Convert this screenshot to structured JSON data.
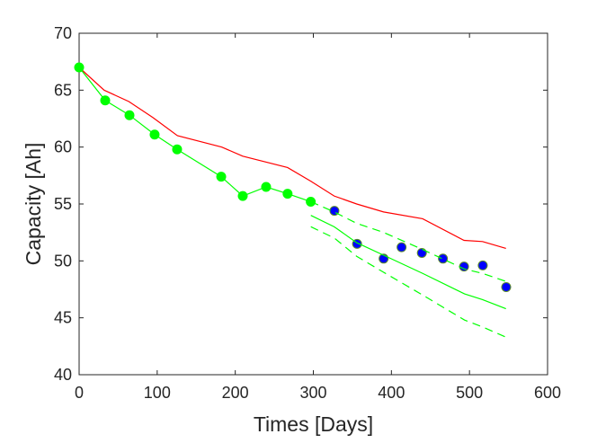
{
  "chart_data": {
    "type": "line",
    "title": "",
    "xlabel": "Times [Days]",
    "ylabel": "Capacity [Ah]",
    "xlim": [
      0,
      600
    ],
    "ylim": [
      40,
      70
    ],
    "xticks": [
      0,
      100,
      200,
      300,
      400,
      500,
      600
    ],
    "yticks": [
      40,
      45,
      50,
      55,
      60,
      65,
      70
    ],
    "grid": false,
    "legend": "none",
    "series": [
      {
        "style": "solid",
        "color": "#ff0000",
        "x": [
          0,
          32,
          63.7,
          94.4,
          125.9,
          182.7,
          209.6,
          267,
          296.7,
          326.7,
          355.5,
          390,
          440,
          493,
          516.7,
          546.7
        ],
        "y": [
          67.0,
          65.0,
          64.0,
          62.6,
          61.0,
          60.0,
          59.2,
          58.2,
          57.0,
          55.7,
          55.0,
          54.3,
          53.7,
          51.8,
          51.7,
          51.1
        ]
      },
      {
        "style": "solid-markers",
        "color": "#00ff00",
        "marker_color": "#00ff00",
        "x": [
          0,
          33.4,
          64.5,
          96.7,
          125.5,
          182,
          209.6,
          239.5,
          267,
          296.7
        ],
        "y": [
          67.0,
          64.1,
          62.8,
          61.1,
          59.8,
          57.4,
          55.7,
          56.5,
          55.9,
          55.2
        ]
      },
      {
        "style": "markers",
        "marker_color": "#0000ff",
        "edge_color": "#5a8a2a",
        "x": [
          327,
          356,
          390,
          413,
          439,
          466,
          493,
          517,
          547
        ],
        "y": [
          54.4,
          51.5,
          50.2,
          51.2,
          50.7,
          50.2,
          49.5,
          49.6,
          47.7
        ]
      },
      {
        "style": "solid",
        "color": "#00ff00",
        "x": [
          296.8,
          326.7,
          355.5,
          390,
          440,
          493.7,
          516.7,
          546.7
        ],
        "y": [
          54.0,
          53.0,
          51.6,
          50.5,
          48.9,
          47.1,
          46.6,
          45.8
        ]
      },
      {
        "style": "dashed",
        "color": "#00ff00",
        "x": [
          296.7,
          326.7,
          355.5,
          390,
          440,
          493,
          516.7,
          546.7
        ],
        "y": [
          55.2,
          54.3,
          53.3,
          52.5,
          51.0,
          49.3,
          48.9,
          48.2
        ]
      },
      {
        "style": "dashed",
        "color": "#00ff00",
        "x": [
          296.8,
          327,
          355.5,
          390,
          440,
          493.7,
          516.7,
          546.7
        ],
        "y": [
          53.0,
          52.0,
          50.4,
          49.0,
          47.0,
          44.8,
          44.2,
          43.3
        ]
      }
    ]
  }
}
